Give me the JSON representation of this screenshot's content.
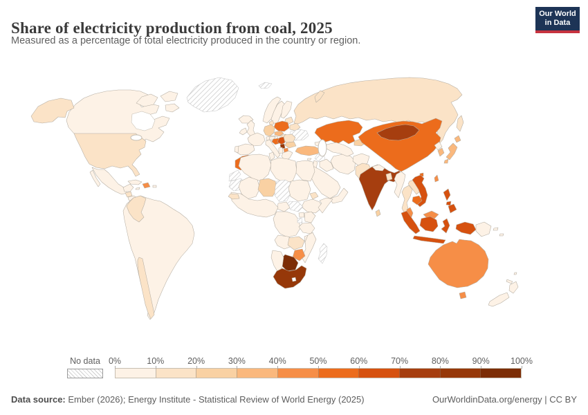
{
  "header": {
    "title": "Share of electricity production from coal, 2025",
    "subtitle": "Measured as a percentage of total electricity produced in the country or region.",
    "logo": {
      "line1": "Our World",
      "line2": "in Data",
      "bg": "#1d3456",
      "stripe": "#c7333f"
    }
  },
  "legend": {
    "no_data_label": "No data",
    "tick_labels": [
      "0%",
      "10%",
      "20%",
      "30%",
      "40%",
      "50%",
      "60%",
      "70%",
      "80%",
      "90%",
      "100%"
    ],
    "bin_order": [
      "b0",
      "b1",
      "b2",
      "b3",
      "b4",
      "b5",
      "b6",
      "b7",
      "b8",
      "b9"
    ]
  },
  "footer": {
    "source_label": "Data source:",
    "source_text": " Ember (2026); Energy Institute - Statistical Review of World Energy (2025)",
    "right_text": "OurWorldinData.org/energy | CC BY"
  },
  "chart_data": {
    "type": "choropleth",
    "title": "Share of electricity production from coal, 2025",
    "unit": "% of total electricity",
    "legend_position": "bottom",
    "palette": {
      "b0": {
        "range": "0-10%",
        "color": "#fdf2e6"
      },
      "b1": {
        "range": "10-20%",
        "color": "#fbe3c7"
      },
      "b2": {
        "range": "20-30%",
        "color": "#f9d1a3"
      },
      "b3": {
        "range": "30-40%",
        "color": "#fab87d"
      },
      "b4": {
        "range": "40-50%",
        "color": "#f68e47"
      },
      "b5": {
        "range": "50-60%",
        "color": "#ec6c1c"
      },
      "b6": {
        "range": "60-70%",
        "color": "#d6510f"
      },
      "b7": {
        "range": "70-80%",
        "color": "#a63e0f"
      },
      "b8": {
        "range": "80-90%",
        "color": "#963809"
      },
      "b9": {
        "range": "90-100%",
        "color": "#7c2d06"
      },
      "nodata": {
        "range": "No data",
        "color": "hatch"
      },
      "water": {
        "range": "water",
        "color": "#ffffff"
      }
    },
    "regions": {
      "greenland": "nodata",
      "canada": "b0",
      "canada-arctic-1": "b0",
      "canada-arctic-2": "b0",
      "canada-arctic-3": "b0",
      "hudson-bay": "water",
      "great-lakes": "water",
      "alaska": "b1",
      "usa": "b1",
      "mexico": "b0",
      "mexico-baja": "b0",
      "yucatan": "b0",
      "guatemala": "b1",
      "central-america": "b0",
      "cuba": "b0",
      "jamaica": "b0",
      "dominican-republic": "b4",
      "puerto-rico": "b0",
      "south-america": "b0",
      "colombia": "b1",
      "chile": "b1",
      "iceland": "b0",
      "svalbard": "nodata",
      "uk": "b0",
      "ireland": "b0",
      "norway": "b0",
      "sweden": "b0",
      "finland": "b0",
      "denmark": "b1",
      "baltics": "b1",
      "belarus": "b1",
      "ukraine": "nodata",
      "poland": "b5",
      "germany": "b2",
      "france": "b0",
      "spain": "b0",
      "portugal": "b0",
      "italy": "b0",
      "alpine": "b0",
      "czechia": "b3",
      "slovakia": "b1",
      "hungary": "b1",
      "romania": "b1",
      "bulgaria": "b2",
      "serbia": "b6",
      "kosovo": "b8",
      "bosnia": "b5",
      "croatia": "b0",
      "albania-montenegro": "b0",
      "north-macedonia": "b4",
      "greece": "b0",
      "russia": "b1",
      "novaya-zemlya": "b1",
      "sakhalin": "b1",
      "turkey": "b3",
      "cyprus": "b0",
      "syria": "nodata",
      "caucasus": "b0",
      "iraq": "b0",
      "iran": "b0",
      "levant": "b0",
      "saudi-arabia": "b0",
      "yemen-oman": "b0",
      "kazakhstan": "b5",
      "caspian-sea": "water",
      "uzbekistan-turkmenistan": "b0",
      "kyrgyzstan-tajikistan": "b2",
      "afghanistan": "b0",
      "pakistan": "b1",
      "india": "b7",
      "nepal": "b0",
      "bangladesh": "b1",
      "sri-lanka": "b2",
      "china": "b5",
      "hainan": "b5",
      "mongolia": "b7",
      "north-korea": "b0",
      "south-korea": "b3",
      "japan-hokkaido": "b3",
      "japan-honshu": "b3",
      "japan-kyushu": "b3",
      "taiwan": "b4",
      "myanmar": "b0",
      "thailand": "b1",
      "laos": "b1",
      "vietnam": "b6",
      "cambodia": "b5",
      "malaysia": "b4",
      "malaysia-borneo": "b4",
      "indonesia-sumatra": "b6",
      "indonesia-kalimantan": "b6",
      "indonesia-java": "b6",
      "indonesia-sulawesi": "b6",
      "lesser-sunda": "b6",
      "indonesia-papua": "b6",
      "papua-new-guinea": "b0",
      "png-islands": "b0",
      "solomon-islands": "b0",
      "philippines-luzon": "b6",
      "philippines-visayas": "b6",
      "philippines-mindanao": "b6",
      "morocco": "b5",
      "western-sahara": "nodata",
      "mauritania": "nodata",
      "algeria": "b0",
      "tunisia": "b0",
      "libya": "b0",
      "egypt": "b0",
      "mali": "b0",
      "niger": "b2",
      "chad": "nodata",
      "sudan": "b0",
      "eritrea": "b1",
      "ethiopia": "b0",
      "somalia": "b0",
      "south-sudan": "nodata",
      "central-african-republic": "b0",
      "west-africa": "b0",
      "senegal": "b1",
      "drc": "b0",
      "uganda": "b0",
      "kenya": "b0",
      "rwanda-burundi": "nodata",
      "tanzania": "b0",
      "angola": "b0",
      "zambia": "b1",
      "malawi": "b0",
      "mozambique": "b0",
      "zimbabwe": "b4",
      "botswana": "b9",
      "namibia": "b0",
      "south-africa": "b8",
      "lesotho": "water",
      "madagascar": "nodata",
      "australia": "b4",
      "tasmania": "b4",
      "new-zealand-north": "b0",
      "new-zealand-south": "b0",
      "new-caledonia": "b0",
      "vanuatu": "b0"
    }
  }
}
